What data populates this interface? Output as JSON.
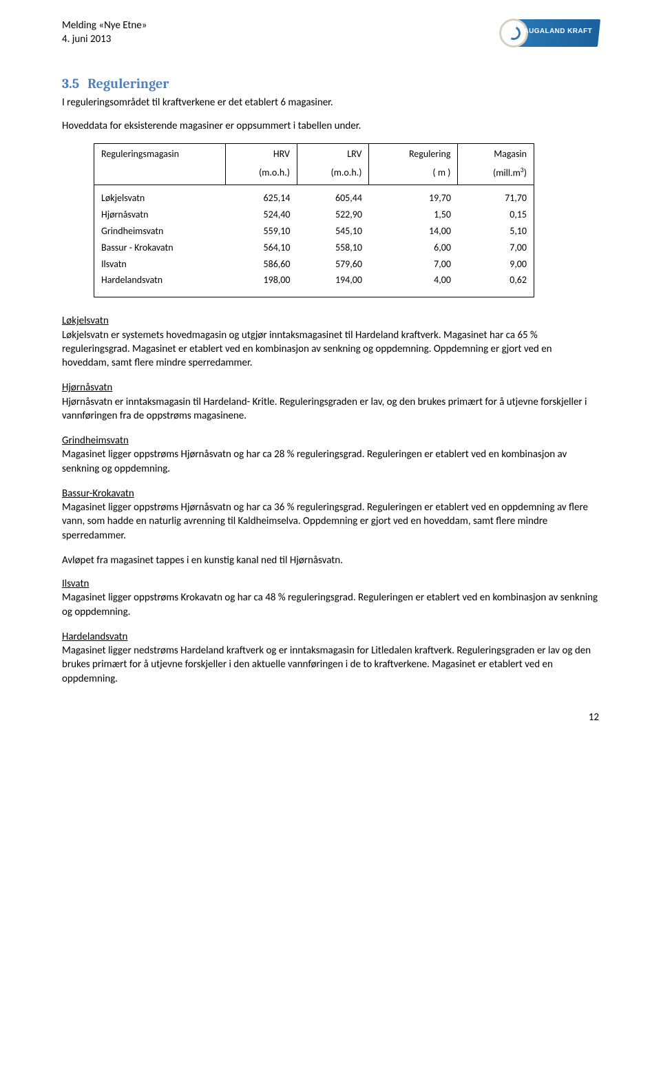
{
  "header": {
    "line1": "Melding «Nye Etne»",
    "line2": "4. juni 2013",
    "logo_text": "HAUGALAND KRAFT",
    "logo_bg_color": "#2b7ab5",
    "logo_text_color": "#ffffff"
  },
  "section": {
    "number": "3.5",
    "title": "Reguleringer",
    "intro1": "I reguleringsområdet til kraftverkene er det etablert 6 magasiner.",
    "intro2": "Hoveddata for eksisterende magasiner er oppsummert i tabellen under."
  },
  "table": {
    "columns": [
      {
        "h1": "Reguleringsmagasin",
        "h2": ""
      },
      {
        "h1": "HRV",
        "h2": "(m.o.h.)"
      },
      {
        "h1": "LRV",
        "h2": "(m.o.h.)"
      },
      {
        "h1": "Regulering",
        "h2": "( m )"
      },
      {
        "h1": "Magasin",
        "h2": "(mill.m³)"
      }
    ],
    "rows": [
      {
        "name": "Løkjelsvatn",
        "hrv": "625,14",
        "lrv": "605,44",
        "reg": "19,70",
        "mag": "71,70"
      },
      {
        "name": "Hjørnåsvatn",
        "hrv": "524,40",
        "lrv": "522,90",
        "reg": "1,50",
        "mag": "0,15"
      },
      {
        "name": "Grindheimsvatn",
        "hrv": "559,10",
        "lrv": "545,10",
        "reg": "14,00",
        "mag": "5,10"
      },
      {
        "name": "Bassur - Krokavatn",
        "hrv": "564,10",
        "lrv": "558,10",
        "reg": "6,00",
        "mag": "7,00"
      },
      {
        "name": "Ilsvatn",
        "hrv": "586,60",
        "lrv": "579,60",
        "reg": "7,00",
        "mag": "9,00"
      },
      {
        "name": "Hardelandsvatn",
        "hrv": "198,00",
        "lrv": "194,00",
        "reg": "4,00",
        "mag": "0,62"
      }
    ],
    "border_color": "#000000",
    "font_size": 14
  },
  "body": {
    "p1_title": "Løkjelsvatn",
    "p1_text": "Løkjelsvatn er systemets hovedmagasin og utgjør inntaksmagasinet til Hardeland kraftverk. Magasinet har ca 65 % reguleringsgrad. Magasinet er etablert ved en kombinasjon av senkning og oppdemning. Oppdemning er gjort ved en hoveddam, samt flere mindre sperredammer.",
    "p2_title": "Hjørnåsvatn",
    "p2_text": "Hjørnåsvatn er inntaksmagasin til Hardeland- Kritle. Reguleringsgraden er lav, og den brukes primært for å utjevne forskjeller i vannføringen fra de oppstrøms magasinene.",
    "p3_title": "Grindheimsvatn",
    "p3_text": "Magasinet ligger oppstrøms Hjørnåsvatn og har ca 28 % reguleringsgrad. Reguleringen er etablert ved en kombinasjon av senkning og oppdemning.",
    "p4_title": "Bassur-Krokavatn",
    "p4_text": "Magasinet ligger oppstrøms Hjørnåsvatn og har ca 36 % reguleringsgrad. Reguleringen er etablert ved en oppdemning av flere vann, som hadde en naturlig avrenning til Kaldheimselva. Oppdemning er gjort ved en hoveddam, samt flere mindre sperredammer.",
    "p4_extra": "Avløpet fra magasinet tappes i en kunstig kanal ned til Hjørnåsvatn.",
    "p5_title": "Ilsvatn",
    "p5_text": "Magasinet ligger oppstrøms Krokavatn og har ca 48 % reguleringsgrad. Reguleringen er etablert ved en kombinasjon av senkning og oppdemning.",
    "p6_title": "Hardelandsvatn",
    "p6_text": "Magasinet ligger nedstrøms Hardeland kraftverk og er inntaksmagasin for Litledalen kraftverk. Reguleringsgraden er lav og den brukes primært for å utjevne forskjeller i den aktuelle vannføringen i de to kraftverkene. Magasinet er etablert ved en oppdemning."
  },
  "page_number": "12",
  "colors": {
    "heading": "#4f81bd",
    "text": "#000000",
    "background": "#ffffff"
  }
}
